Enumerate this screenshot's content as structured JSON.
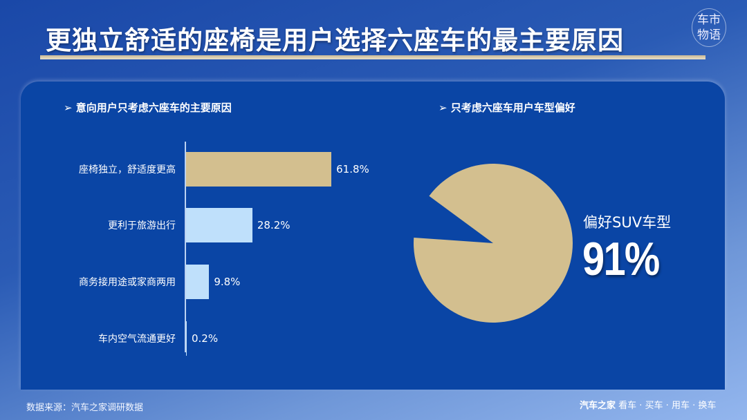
{
  "title": "更独立舒适的座椅是用户选择六座车的最主要原因",
  "logo_text": "车市物语",
  "left_subtitle": "➢  意向用户只考虑六座车的主要原因",
  "right_subtitle": "➢  只考虑六座车用户车型偏好",
  "footer": {
    "source": "数据来源：汽车之家调研数据",
    "brand": "汽车之家",
    "slogan": "看车 · 买车 · 用车 · 换车"
  },
  "chart_data": [
    {
      "type": "bar",
      "orientation": "horizontal",
      "title": "意向用户只考虑六座车的主要原因",
      "categories": [
        "座椅独立，舒适度更高",
        "更利于旅游出行",
        "商务接用途或家商两用",
        "车内空气流通更好"
      ],
      "values": [
        61.8,
        28.2,
        9.8,
        0.2
      ],
      "labels": [
        "61.8%",
        "28.2%",
        "9.8%",
        "0.2%"
      ],
      "colors": [
        "#d3bf8f",
        "#bfe0fb",
        "#bfe0fb",
        "#bfe0fb"
      ],
      "unit": "%"
    },
    {
      "type": "pie",
      "title": "只考虑六座车用户车型偏好",
      "slices": [
        {
          "name": "偏好SUV车型",
          "value": 91,
          "color": "#d3bf8f"
        },
        {
          "value": 9,
          "color": "#0a45a5"
        }
      ],
      "annotation": {
        "label": "偏好SUV车型",
        "value": "91%"
      }
    }
  ]
}
